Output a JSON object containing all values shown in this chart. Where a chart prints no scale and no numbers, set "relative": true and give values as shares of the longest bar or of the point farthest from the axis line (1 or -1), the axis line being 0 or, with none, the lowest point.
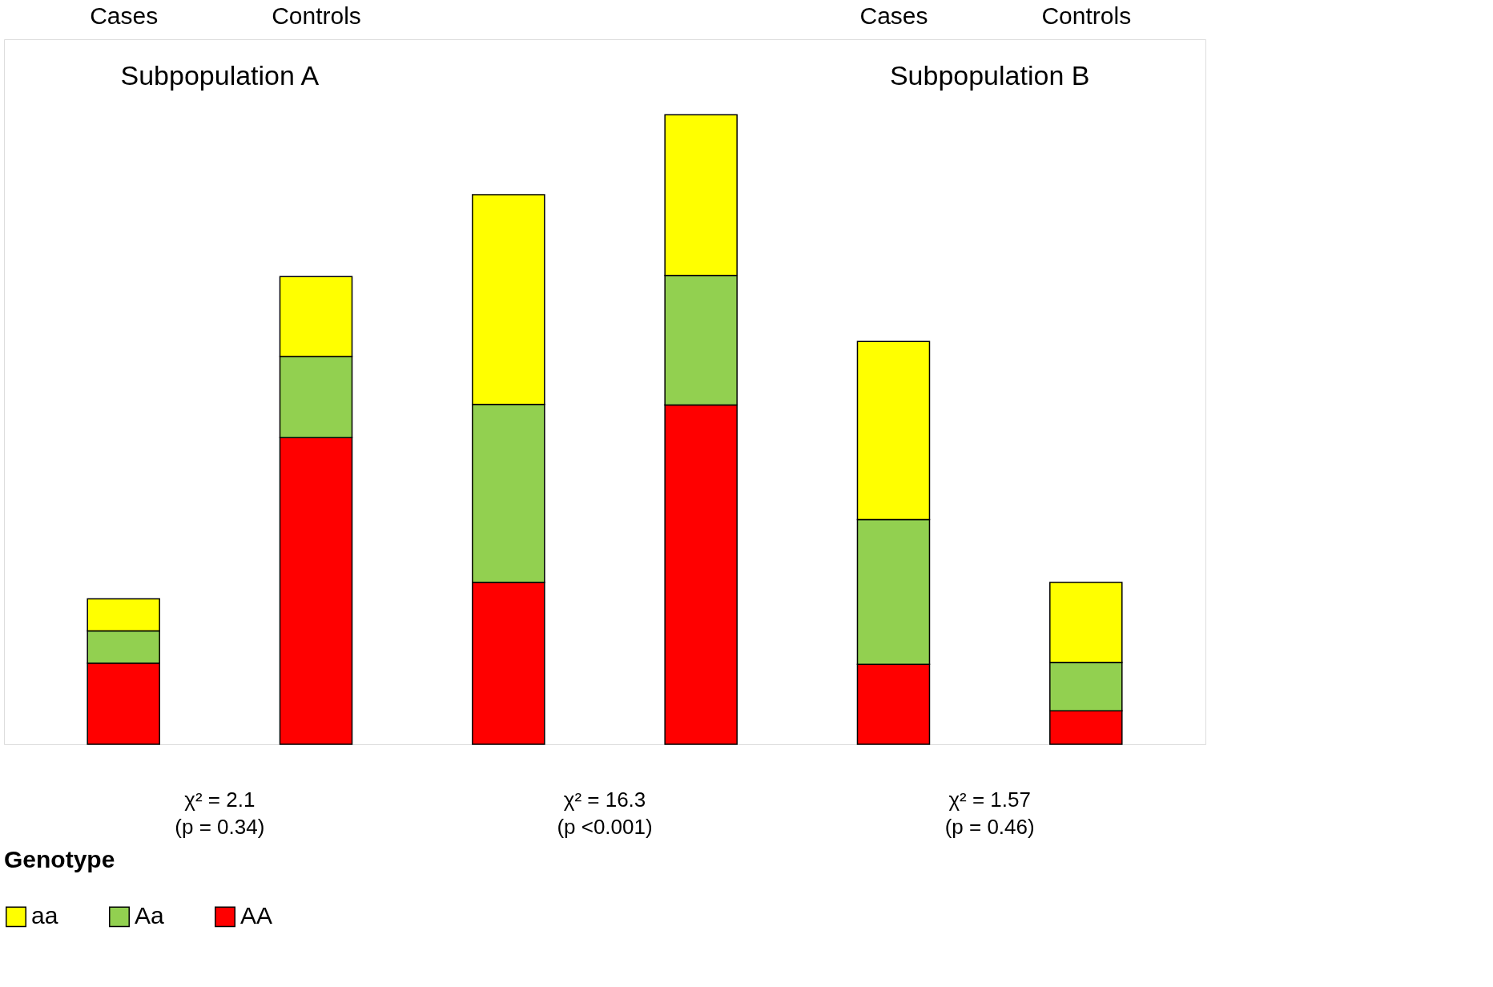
{
  "chart_data": {
    "type": "bar",
    "relative": true,
    "stacked": true,
    "categories": [
      "Cases",
      "Controls",
      null,
      null,
      "Cases",
      "Controls"
    ],
    "series": [
      {
        "name": "AA",
        "color": "#ff0000",
        "values": [
          0.129,
          0.487,
          0.257,
          0.539,
          0.127,
          0.053
        ]
      },
      {
        "name": "Aa",
        "color": "#92d050",
        "values": [
          0.051,
          0.129,
          0.283,
          0.206,
          0.23,
          0.077
        ]
      },
      {
        "name": "aa",
        "color": "#ffff00",
        "values": [
          0.051,
          0.127,
          0.333,
          0.255,
          0.283,
          0.127
        ]
      }
    ],
    "legend_title": "Genotype",
    "legend": "bottom",
    "grid": false,
    "annotations": [
      "Subpopulation A",
      "Subpopulation B",
      "χ² = 2.1\n(p = 0.34)",
      "χ² = 16.3\n(p <0.001)",
      "χ² = 1.57\n(p = 0.46)"
    ]
  }
}
